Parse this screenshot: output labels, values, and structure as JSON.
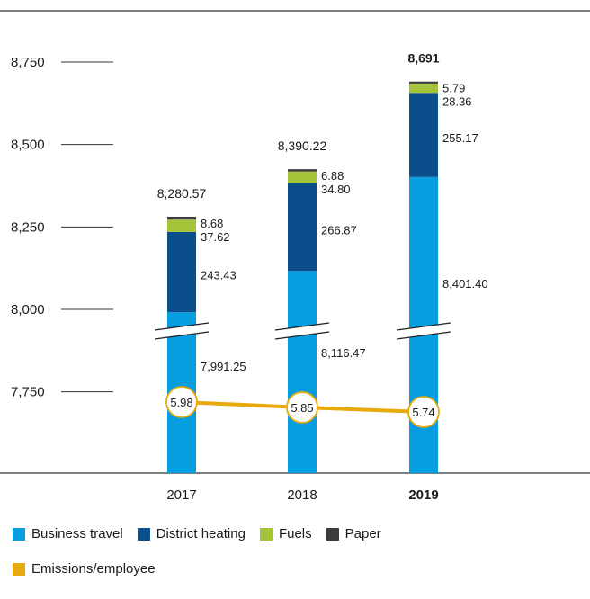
{
  "chart_data": {
    "type": "bar",
    "stacked": true,
    "categories": [
      "2017",
      "2018",
      "2019"
    ],
    "emphasized_category": "2019",
    "y_ticks": [
      "8,750",
      "8,500",
      "8,250",
      "8,000",
      "7,750"
    ],
    "y_tick_values": [
      8750,
      8500,
      8250,
      8000,
      7750
    ],
    "axis_break": true,
    "series": [
      {
        "name": "Business travel",
        "color": "#069ee0",
        "values": [
          7991.25,
          8116.47,
          8401.4
        ],
        "labels": [
          "7,991.25",
          "8,116.47",
          "8,401.40"
        ]
      },
      {
        "name": "District heating",
        "color": "#0a4f8c",
        "values": [
          243.43,
          266.87,
          255.17
        ],
        "labels": [
          "243.43",
          "266.87",
          "255.17"
        ]
      },
      {
        "name": "Fuels",
        "color": "#a4c43a",
        "values": [
          37.62,
          34.8,
          28.36
        ],
        "labels": [
          "37.62",
          "34.80",
          "28.36"
        ]
      },
      {
        "name": "Paper",
        "color": "#3c3c3c",
        "values": [
          8.68,
          6.88,
          5.79
        ],
        "labels": [
          "8.68",
          "6.88",
          "5.79"
        ]
      }
    ],
    "totals": [
      "8,280.57",
      "8,390.22",
      "8,691"
    ],
    "line_series": {
      "name": "Emissions/employee",
      "color": "#e8a90e",
      "values": [
        5.98,
        5.85,
        5.74
      ],
      "labels": [
        "5.98",
        "5.85",
        "5.74"
      ]
    }
  },
  "legend": {
    "business_travel": "Business travel",
    "district_heating": "District heating",
    "fuels": "Fuels",
    "paper": "Paper",
    "emissions": "Emissions/employee"
  },
  "colors": {
    "business_travel": "#069ee0",
    "district_heating": "#0a4f8c",
    "fuels": "#a4c43a",
    "paper": "#3c3c3c",
    "emissions": "#e8a90e"
  }
}
